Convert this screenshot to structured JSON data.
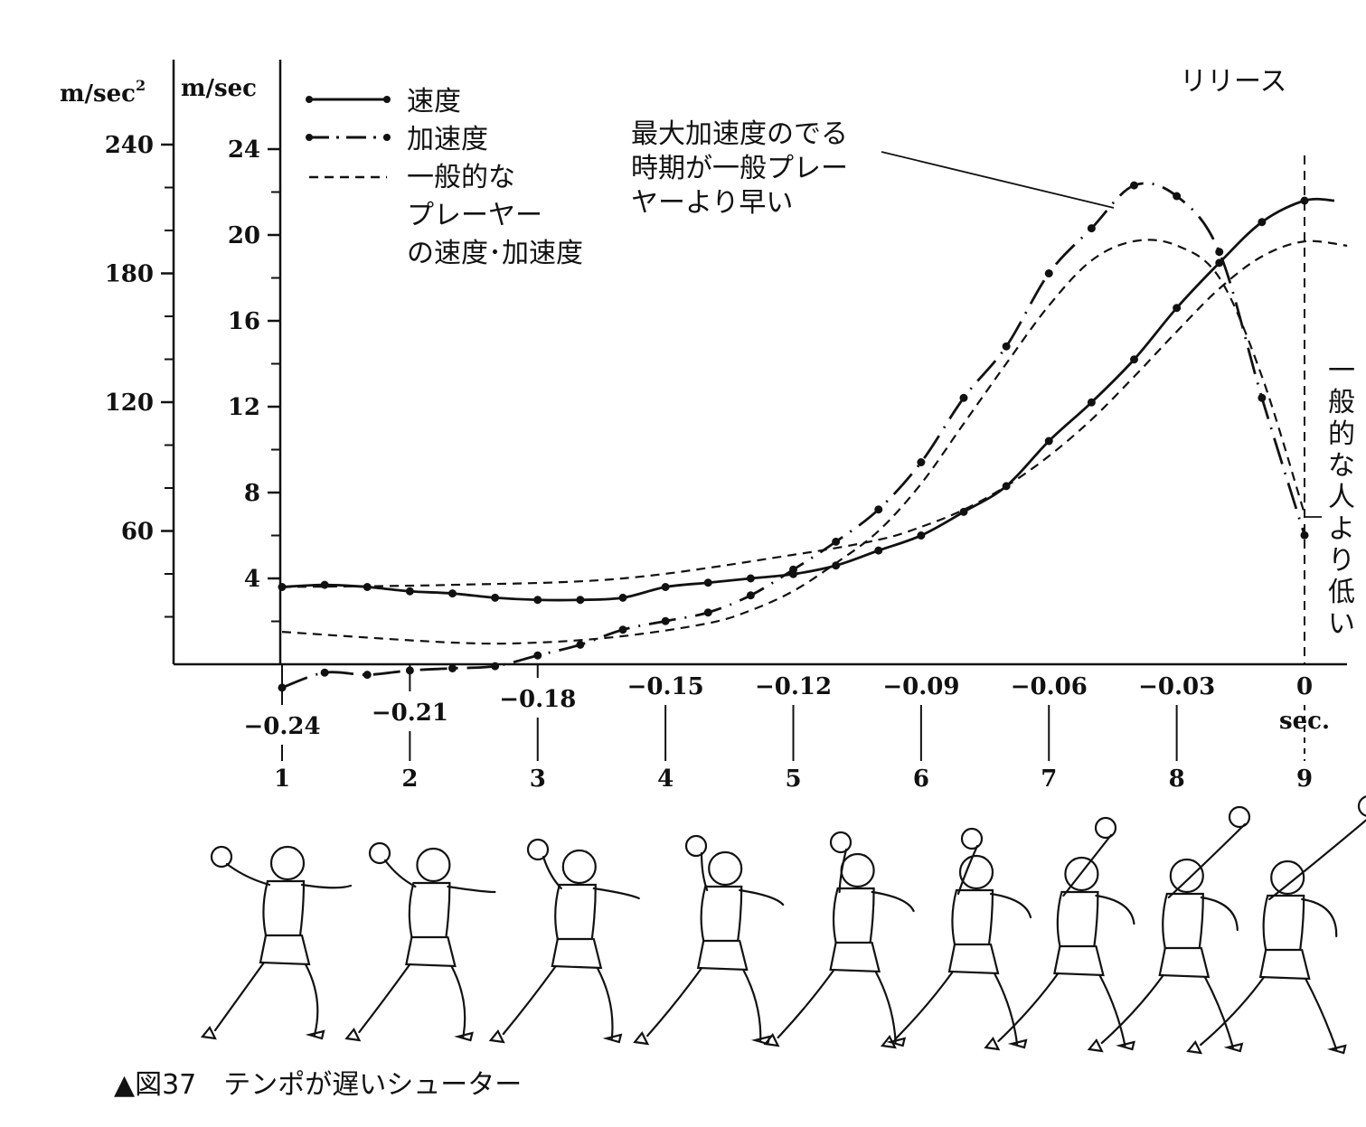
{
  "chart_data": {
    "type": "line",
    "caption": "▲図37　テンポが遅いシューター",
    "axes": {
      "left_accel_unit": "m/sec",
      "left_accel_unit_sup": "2",
      "left_speed_unit": "m/sec",
      "accel_ticks": [
        "240",
        "180",
        "120",
        "60"
      ],
      "speed_ticks": [
        "24",
        "20",
        "16",
        "12",
        "8",
        "4"
      ],
      "speed_range": [
        0,
        24
      ],
      "accel_range": [
        -15,
        240
      ],
      "time_ticks": [
        "−0.24",
        "−0.21",
        "−0.18",
        "−0.15",
        "−0.12",
        "−0.09",
        "−0.06",
        "−0.03",
        "0"
      ],
      "time_unit": "sec.",
      "time_range": [
        -0.24,
        0
      ],
      "frame_numbers": [
        "1",
        "2",
        "3",
        "4",
        "5",
        "6",
        "7",
        "8",
        "9"
      ]
    },
    "legend": {
      "speed": "速度",
      "accel": "加速度",
      "general_lines": [
        "一般的な",
        "プレーヤー",
        "の速度･加速度"
      ]
    },
    "annotations": {
      "release": "リリース",
      "peak_note": [
        "最大加速度のでる",
        "時期が一般プレー",
        "ヤーより早い"
      ],
      "low_note": [
        "一",
        "般",
        "的",
        "な",
        "人",
        "よ",
        "り",
        "低",
        "い"
      ]
    },
    "series": [
      {
        "name": "速度",
        "unit": "m/sec",
        "style": "solid-dots",
        "x": [
          -0.24,
          -0.23,
          -0.22,
          -0.21,
          -0.2,
          -0.19,
          -0.18,
          -0.17,
          -0.16,
          -0.15,
          -0.14,
          -0.13,
          -0.12,
          -0.11,
          -0.1,
          -0.09,
          -0.08,
          -0.07,
          -0.06,
          -0.05,
          -0.04,
          -0.03,
          -0.02,
          -0.01,
          0,
          0.007
        ],
        "y": [
          3.6,
          3.7,
          3.6,
          3.4,
          3.3,
          3.1,
          3.0,
          3.0,
          3.1,
          3.6,
          3.8,
          4.0,
          4.2,
          4.6,
          5.3,
          6.0,
          7.1,
          8.3,
          10.4,
          12.2,
          14.2,
          16.6,
          18.7,
          20.6,
          21.6,
          21.6
        ]
      },
      {
        "name": "加速度",
        "unit": "m/sec2",
        "style": "dash-dot",
        "x": [
          -0.24,
          -0.23,
          -0.22,
          -0.21,
          -0.2,
          -0.19,
          -0.18,
          -0.17,
          -0.16,
          -0.15,
          -0.14,
          -0.13,
          -0.12,
          -0.11,
          -0.1,
          -0.09,
          -0.08,
          -0.07,
          -0.06,
          -0.05,
          -0.04,
          -0.03,
          -0.02,
          -0.01,
          0
        ],
        "y": [
          -13,
          -6,
          -7,
          -5,
          -4,
          -3,
          2,
          7,
          14,
          18,
          22,
          30,
          42,
          55,
          70,
          92,
          122,
          146,
          180,
          201,
          221,
          216,
          190,
          122,
          58
        ]
      },
      {
        "name": "一般的なプレーヤーの速度",
        "unit": "m/sec",
        "style": "dashed",
        "x": [
          -0.24,
          -0.2,
          -0.16,
          -0.12,
          -0.1,
          -0.09,
          -0.08,
          -0.07,
          -0.06,
          -0.05,
          -0.04,
          -0.03,
          -0.02,
          -0.01,
          0,
          0.01
        ],
        "y": [
          3.6,
          3.7,
          4.0,
          5.1,
          5.8,
          6.4,
          7.2,
          8.3,
          9.7,
          11.4,
          13.4,
          15.5,
          17.5,
          19.0,
          19.7,
          19.5
        ]
      },
      {
        "name": "一般的なプレーヤーの加速度",
        "unit": "m/sec2",
        "style": "dashed",
        "x": [
          -0.24,
          -0.2,
          -0.18,
          -0.16,
          -0.14,
          -0.13,
          -0.12,
          -0.11,
          -0.1,
          -0.09,
          -0.08,
          -0.07,
          -0.06,
          -0.05,
          -0.04,
          -0.03,
          -0.02,
          -0.01,
          0
        ],
        "y": [
          13,
          8,
          8,
          11,
          17,
          23,
          32,
          45,
          60,
          82,
          110,
          138,
          165,
          186,
          195,
          193,
          178,
          132,
          68
        ]
      }
    ]
  }
}
